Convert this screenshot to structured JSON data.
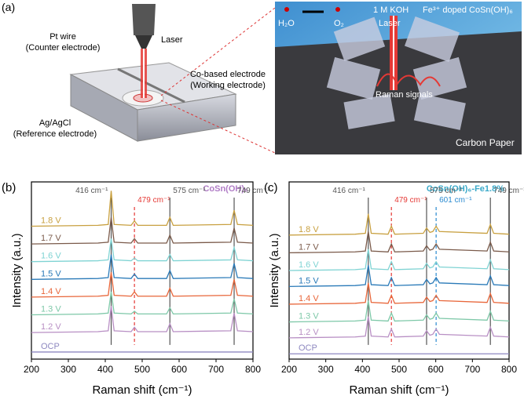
{
  "panel_a": {
    "label": "(a)",
    "pt_wire": "Pt wire",
    "counter": "(Counter electrode)",
    "laser": "Laser",
    "co_electrode": "Co-based electrode",
    "working": "(Working electrode)",
    "agcl": "Ag/AgCl",
    "reference": "(Reference electrode)",
    "h2o": "H₂O",
    "o2": "O₂",
    "koh": "1 M KOH",
    "laser2": "Laser",
    "fe_doped": "Fe³⁺ doped CoSn(OH)₆",
    "raman": "Raman signals",
    "carbon": "Carbon Paper"
  },
  "chart_data": [
    {
      "type": "line",
      "panel": "(b)",
      "title": "CoSn(OH)₆",
      "title_color": "#b07cc6",
      "xlabel": "Raman shift (cm⁻¹)",
      "ylabel": "Intensity (a.u.)",
      "xlim": [
        200,
        800
      ],
      "xticks": [
        200,
        300,
        400,
        500,
        600,
        700,
        800
      ],
      "ylim": [
        0,
        100
      ],
      "x": [
        200,
        380,
        408,
        416,
        424,
        470,
        479,
        488,
        566,
        575,
        584,
        740,
        749,
        758,
        800
      ],
      "peaks": [
        {
          "x": 416,
          "label": "416 cm⁻¹",
          "color": "#555555",
          "dashed": false
        },
        {
          "x": 479,
          "label": "479 cm⁻¹",
          "color": "#e53935",
          "dashed": true
        },
        {
          "x": 575,
          "label": "575 cm⁻¹",
          "color": "#555555",
          "dashed": false
        },
        {
          "x": 749,
          "label": "749 cm⁻¹",
          "color": "#555555",
          "dashed": false
        }
      ],
      "series": [
        {
          "name": "OCP",
          "color": "#8e88c0",
          "values": [
            4,
            4,
            4,
            4,
            4,
            4,
            4,
            4,
            4,
            4,
            4,
            4,
            4,
            4,
            4
          ]
        },
        {
          "name": "1.2 V",
          "color": "#b88fc4",
          "values": [
            15,
            15.5,
            16,
            30,
            16,
            15.5,
            18,
            15.5,
            15.5,
            20,
            15.5,
            16,
            26,
            16,
            15.5
          ]
        },
        {
          "name": "1.3 V",
          "color": "#7ec8a8",
          "values": [
            25,
            25.5,
            26,
            38,
            26,
            25.5,
            27,
            25.5,
            25.5,
            29,
            25.5,
            26,
            34,
            26,
            25.5
          ]
        },
        {
          "name": "1.4 V",
          "color": "#e8663a",
          "values": [
            35,
            35.5,
            36,
            49,
            36,
            35.5,
            38,
            35.5,
            35.5,
            40,
            35.5,
            36,
            45,
            36,
            35.5
          ]
        },
        {
          "name": "1.5 V",
          "color": "#2a7ab8",
          "values": [
            45,
            45.5,
            46,
            59,
            46,
            45.5,
            48,
            45.5,
            45.5,
            50,
            45.5,
            46,
            54,
            46,
            45.5
          ]
        },
        {
          "name": "1.6 V",
          "color": "#7fd3d3",
          "values": [
            55,
            55.5,
            56,
            68,
            56,
            55.5,
            57,
            55.5,
            55.5,
            59,
            55.5,
            56,
            63,
            56,
            55.5
          ]
        },
        {
          "name": "1.7 V",
          "color": "#7a5a4a",
          "values": [
            65,
            65.5,
            66,
            80,
            66,
            65.5,
            68,
            65.5,
            65.5,
            70,
            65.5,
            66,
            74,
            66,
            65.5
          ]
        },
        {
          "name": "1.8 V",
          "color": "#c8a040",
          "values": [
            75,
            75.5,
            76,
            95,
            76,
            75.5,
            78,
            75.5,
            75.5,
            80,
            75.5,
            76,
            84,
            76,
            75.5
          ]
        }
      ]
    },
    {
      "type": "line",
      "panel": "(c)",
      "title": "CoSn(OH)₆-Fe1.8%",
      "title_color": "#3aa9c9",
      "xlabel": "Raman shift (cm⁻¹)",
      "ylabel": "Intensity (a.u.)",
      "xlim": [
        200,
        800
      ],
      "xticks": [
        200,
        300,
        400,
        500,
        600,
        700,
        800
      ],
      "ylim": [
        0,
        100
      ],
      "x": [
        200,
        380,
        408,
        416,
        424,
        470,
        479,
        488,
        566,
        575,
        584,
        592,
        601,
        610,
        740,
        749,
        758,
        800
      ],
      "peaks": [
        {
          "x": 416,
          "label": "416 cm⁻¹",
          "color": "#555555",
          "dashed": false
        },
        {
          "x": 479,
          "label": "479 cm⁻¹",
          "color": "#e53935",
          "dashed": true
        },
        {
          "x": 575,
          "label": "575 cm⁻¹",
          "color": "#555555",
          "dashed": false
        },
        {
          "x": 601,
          "label": "601 cm⁻¹",
          "color": "#2a8ad0",
          "dashed": true
        },
        {
          "x": 749,
          "label": "749 cm⁻¹",
          "color": "#555555",
          "dashed": false
        }
      ],
      "series": [
        {
          "name": "OCP",
          "color": "#8e88c0",
          "values": [
            3,
            3,
            3,
            3,
            3,
            3,
            3,
            3,
            3,
            3,
            3,
            3,
            3,
            3,
            3,
            3,
            3,
            3
          ]
        },
        {
          "name": "1.2 V",
          "color": "#b88fc4",
          "values": [
            12,
            12.5,
            13,
            24,
            13,
            12.5,
            17,
            12.5,
            13,
            16,
            13.5,
            14,
            17,
            14,
            13,
            18,
            13,
            12.5
          ]
        },
        {
          "name": "1.3 V",
          "color": "#7ec8a8",
          "values": [
            21,
            21.5,
            22,
            33,
            22,
            21.5,
            26,
            21.5,
            22,
            25,
            22.5,
            23,
            26,
            23,
            22,
            27,
            22,
            21.5
          ]
        },
        {
          "name": "1.4 V",
          "color": "#e8663a",
          "values": [
            31,
            31.5,
            32,
            43,
            32,
            31.5,
            36,
            31.5,
            32,
            35,
            32.5,
            33,
            36,
            33,
            32,
            37,
            32,
            31.5
          ]
        },
        {
          "name": "1.5 V",
          "color": "#2a7ab8",
          "values": [
            41,
            41.5,
            42,
            53,
            42,
            41.5,
            46,
            41.5,
            42,
            45,
            42.5,
            43,
            46,
            43,
            42,
            47,
            42,
            41.5
          ]
        },
        {
          "name": "1.6 V",
          "color": "#7fd3d3",
          "values": [
            50,
            50.5,
            51,
            62,
            51,
            50.5,
            55,
            50.5,
            51,
            54,
            51.5,
            52,
            55,
            52,
            51,
            56,
            51,
            50.5
          ]
        },
        {
          "name": "1.7 V",
          "color": "#7a5a4a",
          "values": [
            60,
            60.5,
            61,
            72,
            61,
            60.5,
            65,
            60.5,
            61,
            64,
            61.5,
            62,
            65,
            62,
            61,
            66,
            61,
            60.5
          ]
        },
        {
          "name": "1.8 V",
          "color": "#c8a040",
          "values": [
            70,
            70.5,
            71,
            82,
            71,
            70.5,
            75,
            70.5,
            71,
            74,
            71.5,
            72,
            75,
            72,
            71,
            76,
            71,
            70.5
          ]
        }
      ]
    }
  ]
}
